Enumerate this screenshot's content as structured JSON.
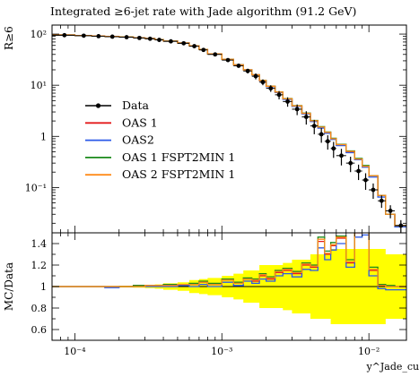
{
  "title": "Integrated ≥6-jet rate with Jade algorithm (91.2 GeV)",
  "ylabel_main": "R≥6",
  "ylabel_ratio": "MC/Data",
  "xlabel": "y^Jade_cut",
  "colors": {
    "data": "#000000",
    "OAS 1": "#e41a1c",
    "OAS2": "#2b59e8",
    "OAS 1 FSPT2MIN 1": "#1a8a1a",
    "OAS 2 FSPT2MIN 1": "#ff8c1a",
    "band": "#ffff00"
  },
  "chart_data": [
    {
      "type": "line",
      "panel": "main",
      "xscale": "log",
      "yscale": "log",
      "xlim": [
        7e-05,
        0.018
      ],
      "ylim": [
        0.013,
        150
      ],
      "x_ticks": [
        "10⁻⁴",
        "10⁻³",
        "10⁻²"
      ],
      "y_ticks": [
        "10⁻¹",
        "1",
        "10¹",
        "10²"
      ],
      "legend_position": "center-left",
      "bin_edges": [
        7e-05,
        0.0001,
        0.00013,
        0.00016,
        0.0002,
        0.00025,
        0.0003,
        0.00035,
        0.0004,
        0.0005,
        0.0006,
        0.0007,
        0.0008,
        0.001,
        0.0012,
        0.0014,
        0.0016,
        0.0018,
        0.002,
        0.0023,
        0.0026,
        0.003,
        0.0035,
        0.004,
        0.0045,
        0.005,
        0.0055,
        0.006,
        0.007,
        0.008,
        0.009,
        0.01,
        0.0115,
        0.013,
        0.015,
        0.018
      ],
      "series": [
        {
          "name": "Data",
          "x": [
            8.5e-05,
            0.000115,
            0.000145,
            0.00018,
            0.000225,
            0.000275,
            0.000325,
            0.000375,
            0.00045,
            0.00055,
            0.00065,
            0.00075,
            0.0009,
            0.0011,
            0.0013,
            0.0015,
            0.0017,
            0.0019,
            0.00215,
            0.00245,
            0.0028,
            0.00325,
            0.00375,
            0.00425,
            0.00475,
            0.00525,
            0.00575,
            0.0065,
            0.0075,
            0.0085,
            0.0095,
            0.0107,
            0.0122,
            0.014,
            0.0165
          ],
          "values": [
            95,
            93,
            91,
            89,
            87,
            84,
            81,
            77,
            72,
            66,
            58,
            49,
            40,
            31,
            24,
            19,
            15,
            11.5,
            8.7,
            6.5,
            4.8,
            3.4,
            2.4,
            1.6,
            1.1,
            0.8,
            0.58,
            0.42,
            0.3,
            0.21,
            0.14,
            0.09,
            0.055,
            0.035,
            0.018
          ],
          "errors": [
            2,
            2,
            2,
            2,
            2,
            2,
            2,
            2,
            2,
            2,
            2,
            2,
            2,
            2,
            2,
            2,
            2,
            1.5,
            1.3,
            1.2,
            1,
            0.8,
            0.7,
            0.5,
            0.35,
            0.25,
            0.2,
            0.15,
            0.1,
            0.07,
            0.05,
            0.03,
            0.015,
            0.01,
            0.005
          ]
        },
        {
          "name": "OAS 1",
          "values": [
            96,
            94,
            92,
            90,
            88,
            85,
            82,
            78,
            73,
            67,
            59,
            50,
            41,
            32,
            25,
            20,
            16,
            12.3,
            9.5,
            7.3,
            5.4,
            3.9,
            2.8,
            2.0,
            1.5,
            1.2,
            0.9,
            0.68,
            0.5,
            0.36,
            0.26,
            0.17,
            0.07,
            0.03,
            0.018
          ]
        },
        {
          "name": "OAS2",
          "values": [
            96,
            94,
            92,
            90,
            88,
            85,
            82,
            78,
            73,
            67,
            59,
            50,
            41,
            32,
            25,
            20,
            16,
            12.2,
            9.4,
            7.2,
            5.3,
            3.85,
            2.75,
            1.95,
            1.45,
            1.15,
            0.87,
            0.66,
            0.48,
            0.35,
            0.25,
            0.16,
            0.065,
            0.03,
            0.017
          ]
        },
        {
          "name": "OAS 1 FSPT2MIN 1",
          "values": [
            96,
            94,
            92,
            90,
            88,
            85,
            82,
            78,
            73,
            67,
            59,
            50,
            41,
            32,
            25,
            20,
            16,
            12.4,
            9.6,
            7.4,
            5.5,
            4.0,
            2.85,
            2.05,
            1.55,
            1.22,
            0.92,
            0.7,
            0.52,
            0.37,
            0.27,
            0.17,
            0.07,
            0.03,
            0.018
          ]
        },
        {
          "name": "OAS 2 FSPT2MIN 1",
          "values": [
            96,
            94,
            92,
            90,
            88,
            85,
            82,
            78,
            73,
            67,
            59,
            50,
            41,
            32,
            25,
            20,
            16,
            12.35,
            9.55,
            7.35,
            5.45,
            3.95,
            2.82,
            2.02,
            1.52,
            1.2,
            0.9,
            0.69,
            0.51,
            0.36,
            0.26,
            0.17,
            0.07,
            0.03,
            0.018
          ]
        }
      ]
    },
    {
      "type": "line",
      "panel": "ratio",
      "xscale": "log",
      "xlim": [
        7e-05,
        0.018
      ],
      "ylim": [
        0.5,
        1.5
      ],
      "y_ticks": [
        "0.6",
        "0.8",
        "1",
        "1.2",
        "1.4"
      ],
      "band_halfwidth": [
        0.005,
        0.005,
        0.005,
        0.005,
        0.008,
        0.01,
        0.015,
        0.02,
        0.03,
        0.04,
        0.06,
        0.07,
        0.08,
        0.1,
        0.12,
        0.15,
        0.15,
        0.2,
        0.2,
        0.2,
        0.22,
        0.25,
        0.25,
        0.3,
        0.3,
        0.3,
        0.35,
        0.35,
        0.35,
        0.35,
        0.35,
        0.35,
        0.35,
        0.3,
        0.3
      ],
      "series": [
        {
          "name": "OAS 1",
          "values": [
            1.0,
            1.0,
            1.0,
            1.0,
            1.0,
            1.01,
            1.01,
            1.01,
            1.01,
            1.02,
            1.02,
            1.04,
            1.02,
            1.06,
            1.03,
            1.07,
            1.05,
            1.1,
            1.07,
            1.13,
            1.15,
            1.12,
            1.2,
            1.18,
            1.42,
            1.3,
            1.38,
            1.45,
            1.22,
            1.5,
            1.52,
            1.15,
            1.01,
            1.0,
            1.0
          ]
        },
        {
          "name": "OAS2",
          "values": [
            1.0,
            1.0,
            1.0,
            0.99,
            1.0,
            1.0,
            1.0,
            1.0,
            1.0,
            1.01,
            1.0,
            1.02,
            1.0,
            1.04,
            1.01,
            1.05,
            1.03,
            1.07,
            1.05,
            1.1,
            1.12,
            1.09,
            1.16,
            1.15,
            1.36,
            1.25,
            1.34,
            1.4,
            1.18,
            1.46,
            1.48,
            1.1,
            0.98,
            0.97,
            0.97
          ]
        },
        {
          "name": "OAS 1 FSPT2MIN 1",
          "values": [
            1.0,
            1.0,
            1.0,
            1.0,
            1.0,
            1.01,
            1.01,
            1.01,
            1.02,
            1.02,
            1.03,
            1.05,
            1.03,
            1.07,
            1.04,
            1.08,
            1.07,
            1.12,
            1.09,
            1.15,
            1.17,
            1.14,
            1.22,
            1.2,
            1.46,
            1.33,
            1.41,
            1.47,
            1.25,
            1.52,
            1.55,
            1.18,
            1.02,
            1.01,
            1.0
          ]
        },
        {
          "name": "OAS 2 FSPT2MIN 1",
          "values": [
            1.0,
            1.0,
            1.0,
            1.0,
            1.0,
            1.0,
            1.01,
            1.01,
            1.01,
            1.02,
            1.02,
            1.04,
            1.02,
            1.06,
            1.03,
            1.07,
            1.06,
            1.11,
            1.08,
            1.14,
            1.16,
            1.13,
            1.21,
            1.19,
            1.44,
            1.31,
            1.39,
            1.46,
            1.23,
            1.51,
            1.53,
            1.16,
            1.01,
            1.0,
            1.0
          ]
        }
      ]
    }
  ]
}
